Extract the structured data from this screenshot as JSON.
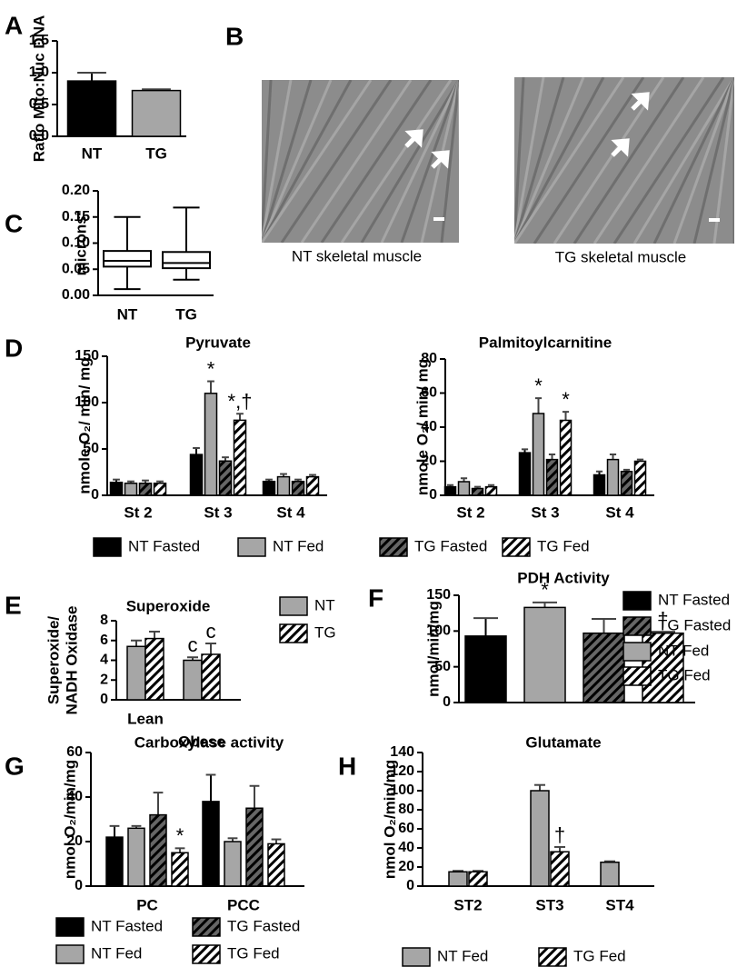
{
  "chart_data": [
    {
      "type": "bar",
      "panel": "A",
      "ylabel": "Ratio Mito:Nuc DNA",
      "categories": [
        "NT",
        "TG"
      ],
      "values": [
        0.87,
        0.72
      ],
      "errors": [
        0.13,
        0.02
      ],
      "colors": [
        "#000000",
        "#a6a6a6"
      ],
      "ylim": [
        0,
        1.5
      ],
      "yticks": [
        {
          "value": 0,
          "label": "0.0"
        },
        {
          "value": 0.5,
          "label": "0.5"
        },
        {
          "value": 1,
          "label": "1.0"
        },
        {
          "value": 1.5,
          "label": "1.5"
        }
      ]
    },
    {
      "type": "image",
      "panel": "B",
      "captions": [
        "NT skeletal muscle",
        "TG skeletal muscle"
      ]
    },
    {
      "type": "box",
      "panel": "C",
      "ylabel": "microns²",
      "categories": [
        "NT",
        "TG"
      ],
      "stats": {
        "min": [
          0.012,
          0.03
        ],
        "q1": [
          0.055,
          0.052
        ],
        "median": [
          0.066,
          0.062
        ],
        "q3": [
          0.085,
          0.083
        ],
        "max": [
          0.15,
          0.168
        ]
      },
      "ylim": [
        0,
        0.2
      ],
      "yticks": [
        {
          "value": 0,
          "label": "0.00"
        },
        {
          "value": 0.05,
          "label": "0.05"
        },
        {
          "value": 0.1,
          "label": "0.10"
        },
        {
          "value": 0.15,
          "label": "0.15"
        },
        {
          "value": 0.2,
          "label": "0.20"
        }
      ]
    },
    {
      "type": "bar",
      "panel": "D",
      "title": "Pyruvate",
      "ylabel": "nmole O₂/ min/ mg",
      "categories": [
        "St 2",
        "St 3",
        "St 4"
      ],
      "series": [
        {
          "name": "NT Fasted",
          "color": "#000000",
          "values": [
            14,
            44,
            15
          ],
          "errors": [
            3,
            7,
            2
          ]
        },
        {
          "name": "NT Fed",
          "color": "#a6a6a6",
          "values": [
            13,
            110,
            20
          ],
          "errors": [
            2,
            13,
            3
          ],
          "annotations": [
            null,
            "*",
            null
          ]
        },
        {
          "name": "TG Fasted",
          "color": "#666666",
          "pattern": "hatch",
          "values": [
            13,
            37,
            15
          ],
          "errors": [
            3,
            4,
            2
          ]
        },
        {
          "name": "TG Fed",
          "color": "#ffffff",
          "pattern": "hatch",
          "values": [
            13,
            81,
            20
          ],
          "errors": [
            2,
            7,
            2
          ],
          "annotations": [
            null,
            "*,†",
            null
          ]
        }
      ],
      "ylim": [
        0,
        150
      ],
      "yticks": [
        0,
        50,
        100,
        150
      ]
    },
    {
      "type": "bar",
      "title": "Palmitoylcarnitine",
      "ylabel": "nmole O₂/ min/ mg",
      "categories": [
        "St 2",
        "St 3",
        "St 4"
      ],
      "series": [
        {
          "color": "#000000",
          "values": [
            5,
            25,
            12
          ],
          "errors": [
            1,
            2,
            2
          ]
        },
        {
          "color": "#a6a6a6",
          "values": [
            8,
            48,
            21
          ],
          "errors": [
            2,
            9,
            3
          ],
          "annotations": [
            null,
            "*",
            null
          ]
        },
        {
          "color": "#666666",
          "pattern": "hatch",
          "values": [
            4,
            21,
            14
          ],
          "errors": [
            1,
            3,
            1
          ]
        },
        {
          "color": "#ffffff",
          "pattern": "hatch",
          "values": [
            5,
            44,
            20
          ],
          "errors": [
            1,
            5,
            1
          ],
          "annotations": [
            null,
            "*",
            null
          ]
        }
      ],
      "ylim": [
        0,
        80
      ],
      "yticks": [
        0,
        20,
        40,
        60,
        80
      ]
    },
    {
      "type": "bar",
      "panel": "E",
      "title": "Superoxide",
      "ylabel": [
        "Superoxide/",
        "NADH Oxidase"
      ],
      "categories": [
        "Lean",
        "Obese"
      ],
      "series": [
        {
          "name": "NT",
          "color": "#a6a6a6",
          "values": [
            5.4,
            4.0
          ],
          "errors": [
            0.6,
            0.3
          ],
          "annotations": [
            null,
            "c"
          ]
        },
        {
          "name": "TG",
          "color": "#ffffff",
          "pattern": "hatch",
          "values": [
            6.2,
            4.6
          ],
          "errors": [
            0.7,
            1.1
          ],
          "annotations": [
            null,
            "c"
          ]
        }
      ],
      "ylim": [
        0,
        8
      ],
      "yticks": [
        0,
        2,
        4,
        6,
        8
      ]
    },
    {
      "type": "bar",
      "panel": "F",
      "title": "PDH Activity",
      "ylabel": "nmol/min/mg",
      "categories": [
        null
      ],
      "series": [
        {
          "name": "NT Fasted",
          "color": "#000000",
          "values": [
            93
          ],
          "errors": [
            25
          ]
        },
        {
          "name": "NT Fed",
          "color": "#a6a6a6",
          "values": [
            133
          ],
          "errors": [
            7
          ],
          "annotations": [
            "*"
          ]
        },
        {
          "name": "TG Fasted",
          "color": "#666666",
          "pattern": "hatch",
          "values": [
            97
          ],
          "errors": [
            20
          ]
        },
        {
          "name": "TG Fed",
          "color": "#ffffff",
          "pattern": "hatch",
          "values": [
            97
          ],
          "errors": [
            2
          ],
          "annotations": [
            "†"
          ]
        }
      ],
      "legend_order": [
        0,
        2,
        1,
        3
      ],
      "ylim": [
        0,
        150
      ],
      "yticks": [
        0,
        50,
        100,
        150
      ]
    },
    {
      "type": "bar",
      "panel": "G",
      "title": "Carboxylase activity",
      "ylabel": "nmol O₂/min/mg",
      "categories": [
        "PC",
        "PCC"
      ],
      "series": [
        {
          "name": "NT Fasted",
          "color": "#000000",
          "values": [
            22,
            38
          ],
          "errors": [
            5,
            12
          ]
        },
        {
          "name": "NT Fed",
          "color": "#a6a6a6",
          "values": [
            26,
            20
          ],
          "errors": [
            1,
            1.5
          ]
        },
        {
          "name": "TG Fasted",
          "color": "#666666",
          "pattern": "hatch",
          "values": [
            32,
            35
          ],
          "errors": [
            10,
            10
          ]
        },
        {
          "name": "TG Fed",
          "color": "#ffffff",
          "pattern": "hatch",
          "values": [
            15,
            19
          ],
          "errors": [
            2,
            2
          ],
          "annotations": [
            "*",
            null
          ]
        }
      ],
      "legend_order": [
        0,
        2,
        1,
        3
      ],
      "ylim": [
        0,
        60
      ],
      "yticks": [
        0,
        20,
        40,
        60
      ]
    },
    {
      "type": "bar",
      "panel": "H",
      "title": "Glutamate",
      "ylabel": "nmol  O₂/min/mg",
      "categories": [
        "ST2",
        "ST3",
        "ST4"
      ],
      "series": [
        {
          "name": "NT Fed",
          "color": "#a6a6a6",
          "values": [
            15,
            100,
            25
          ],
          "errors": [
            1,
            6,
            1
          ]
        },
        {
          "name": "TG Fed",
          "color": "#ffffff",
          "pattern": "hatch",
          "values": [
            15,
            36,
            null
          ],
          "errors": [
            1,
            5,
            null
          ],
          "annotations": [
            null,
            "†",
            null
          ]
        }
      ],
      "ylim": [
        0,
        140
      ],
      "yticks": [
        0,
        20,
        40,
        60,
        80,
        100,
        120,
        140
      ]
    }
  ]
}
